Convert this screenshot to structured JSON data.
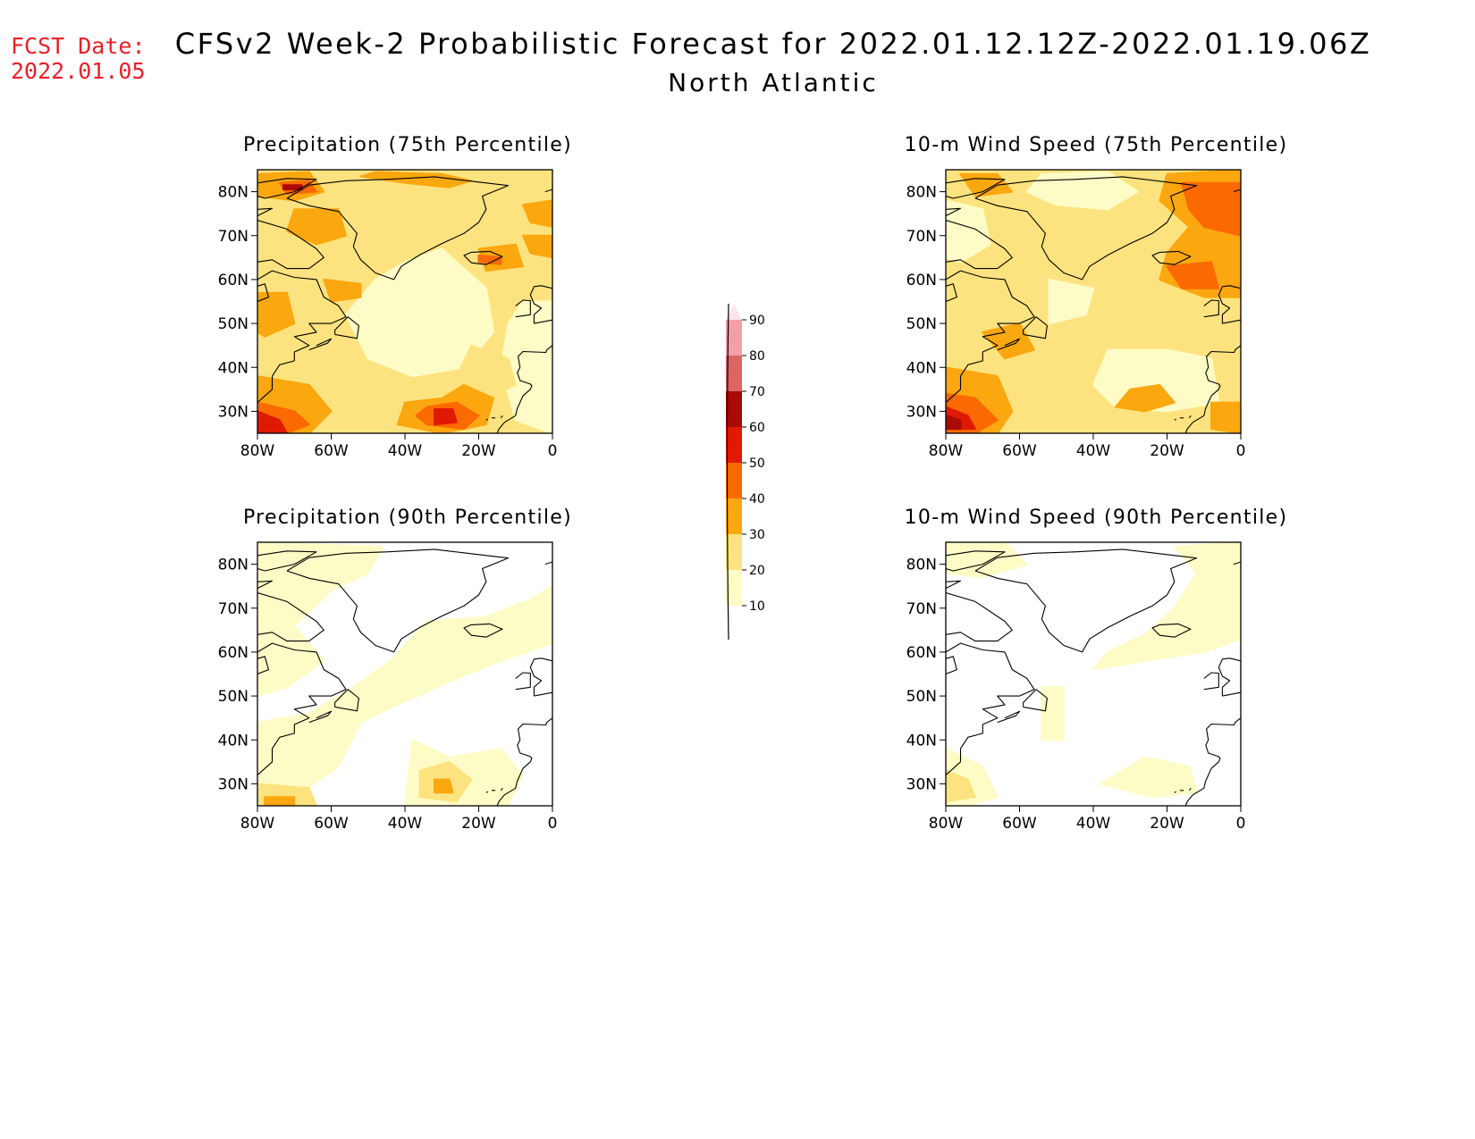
{
  "header": {
    "fcst_label": "FCST Date:",
    "fcst_date": "2022.01.05",
    "title": "CFSv2 Week-2 Probabilistic Forecast for 2022.01.12.12Z-2022.01.19.06Z",
    "subtitle": "North Atlantic"
  },
  "axes": {
    "lat_labels": [
      "80N",
      "70N",
      "60N",
      "50N",
      "40N",
      "30N"
    ],
    "lon_labels": [
      "80W",
      "60W",
      "40W",
      "20W",
      "0"
    ]
  },
  "panels": [
    {
      "id": "precip75",
      "title": "Precipitation (75th Percentile)"
    },
    {
      "id": "wind75",
      "title": "10-m Wind Speed (75th Percentile)"
    },
    {
      "id": "precip90",
      "title": "Precipitation (90th Percentile)"
    },
    {
      "id": "wind90",
      "title": "10-m Wind Speed (90th Percentile)"
    }
  ],
  "colorbar": {
    "levels": [
      "10",
      "20",
      "30",
      "40",
      "50",
      "60",
      "70",
      "80",
      "90"
    ],
    "colors": [
      "#fefcc6",
      "#fde37f",
      "#fba70f",
      "#fa6a00",
      "#e01a02",
      "#a90a05",
      "#dc6464",
      "#f2a0a8",
      "#fde6ea"
    ],
    "land_color": "#ffffff",
    "coast_color": "#000000"
  }
}
